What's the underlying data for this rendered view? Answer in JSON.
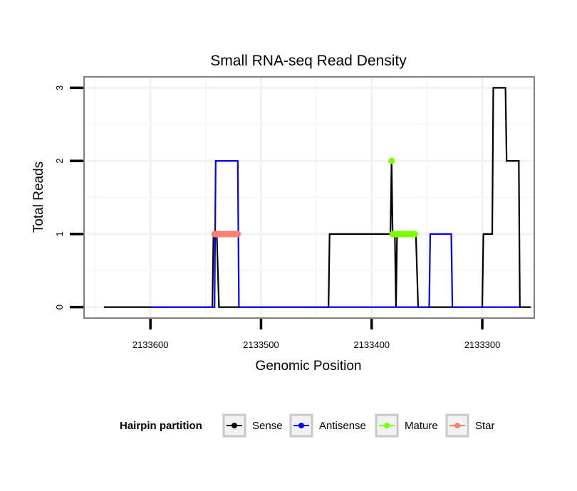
{
  "chart_data": {
    "type": "line",
    "title": "Small RNA-seq Read Density",
    "xlabel": "Genomic Position",
    "ylabel": "Total Reads",
    "x_reversed": true,
    "xlim": [
      2133660,
      2133253
    ],
    "ylim": [
      -0.15,
      3.15
    ],
    "xticks": [
      {
        "value": 2133600,
        "label": "2133600"
      },
      {
        "value": 2133500,
        "label": "2133500"
      },
      {
        "value": 2133400,
        "label": "2133400"
      },
      {
        "value": 2133300,
        "label": "2133300"
      }
    ],
    "yticks": [
      {
        "value": 0,
        "label": "0"
      },
      {
        "value": 1,
        "label": "1"
      },
      {
        "value": 2,
        "label": "2"
      },
      {
        "value": 3,
        "label": "3"
      }
    ],
    "grid": true,
    "legend": {
      "title": "Hairpin partition",
      "position": "bottom",
      "entries": [
        {
          "label": "Sense",
          "color": "#000000"
        },
        {
          "label": "Antisense",
          "color": "#0000ff"
        },
        {
          "label": "Mature",
          "color": "#7cfc00"
        },
        {
          "label": "Star",
          "color": "#fa8072"
        }
      ]
    },
    "series": [
      {
        "name": "Sense",
        "kind": "line",
        "color": "#000000",
        "x": [
          2133642,
          2133544,
          2133543,
          2133540,
          2133538,
          2133522,
          2133521,
          2133439,
          2133438,
          2133383,
          2133382,
          2133381,
          2133380,
          2133379,
          2133378,
          2133377,
          2133361,
          2133360,
          2133358,
          2133346,
          2133345,
          2133359,
          2133300,
          2133299,
          2133291,
          2133290,
          2133279,
          2133278,
          2133267,
          2133266,
          2133256
        ],
        "y": [
          0,
          0,
          1,
          1,
          0,
          0,
          0,
          0,
          1,
          1,
          2,
          1,
          1,
          1,
          0,
          1,
          1,
          1,
          0,
          0,
          0,
          0,
          0,
          1,
          1,
          3,
          3,
          2,
          2,
          0,
          0
        ]
      },
      {
        "name": "Antisense",
        "kind": "line",
        "color": "#0000ff",
        "x": [
          2133600,
          2133542,
          2133541,
          2133521,
          2133520,
          2133519,
          2133358,
          2133348,
          2133347,
          2133328,
          2133327,
          2133266
        ],
        "y": [
          0,
          0,
          2,
          2,
          0,
          0,
          0,
          0,
          1,
          1,
          0,
          0
        ]
      },
      {
        "name": "Mature",
        "kind": "points",
        "color": "#7cfc00",
        "x": [
          2133382,
          2133381,
          2133380,
          2133379,
          2133378,
          2133377,
          2133376,
          2133375,
          2133374,
          2133373,
          2133372,
          2133371,
          2133370,
          2133369,
          2133368,
          2133367,
          2133366,
          2133365,
          2133364,
          2133363,
          2133362,
          2133361
        ],
        "y": [
          2,
          1,
          1,
          1,
          1,
          1,
          1,
          1,
          1,
          1,
          1,
          1,
          1,
          1,
          1,
          1,
          1,
          1,
          1,
          1,
          1,
          1
        ]
      },
      {
        "name": "Star",
        "kind": "points",
        "color": "#fa8072",
        "x": [
          2133542,
          2133541,
          2133540,
          2133539,
          2133538,
          2133537,
          2133536,
          2133535,
          2133534,
          2133533,
          2133532,
          2133531,
          2133530,
          2133529,
          2133528,
          2133527,
          2133526,
          2133525,
          2133524,
          2133523,
          2133522,
          2133521
        ],
        "y": [
          1,
          1,
          1,
          1,
          1,
          1,
          1,
          1,
          1,
          1,
          1,
          1,
          1,
          1,
          1,
          1,
          1,
          1,
          1,
          1,
          1,
          1
        ]
      }
    ]
  }
}
